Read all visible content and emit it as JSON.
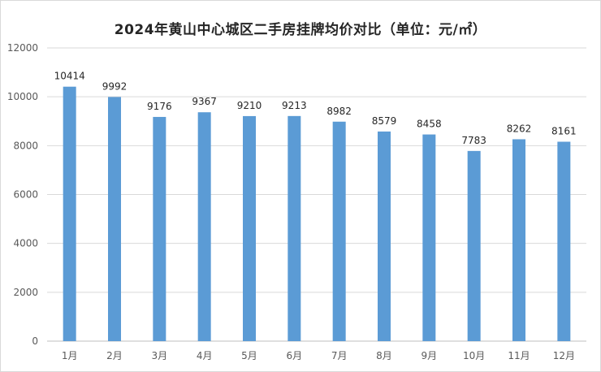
{
  "chart_data": {
    "type": "bar",
    "title": "2024年黄山中心城区二手房挂牌均价对比（单位：元/㎡）",
    "xlabel": "",
    "ylabel": "",
    "categories": [
      "1月",
      "2月",
      "3月",
      "4月",
      "5月",
      "6月",
      "7月",
      "8月",
      "9月",
      "10月",
      "11月",
      "12月"
    ],
    "values": [
      10414,
      9992,
      9176,
      9367,
      9210,
      9213,
      8982,
      8579,
      8458,
      7783,
      8262,
      8161
    ],
    "ylim": [
      0,
      12000
    ],
    "yticks": [
      "0",
      "2000",
      "4000",
      "6000",
      "8000",
      "10000",
      "12000"
    ],
    "grid": true,
    "legend": "none",
    "bar_color": "#5B9BD5"
  }
}
